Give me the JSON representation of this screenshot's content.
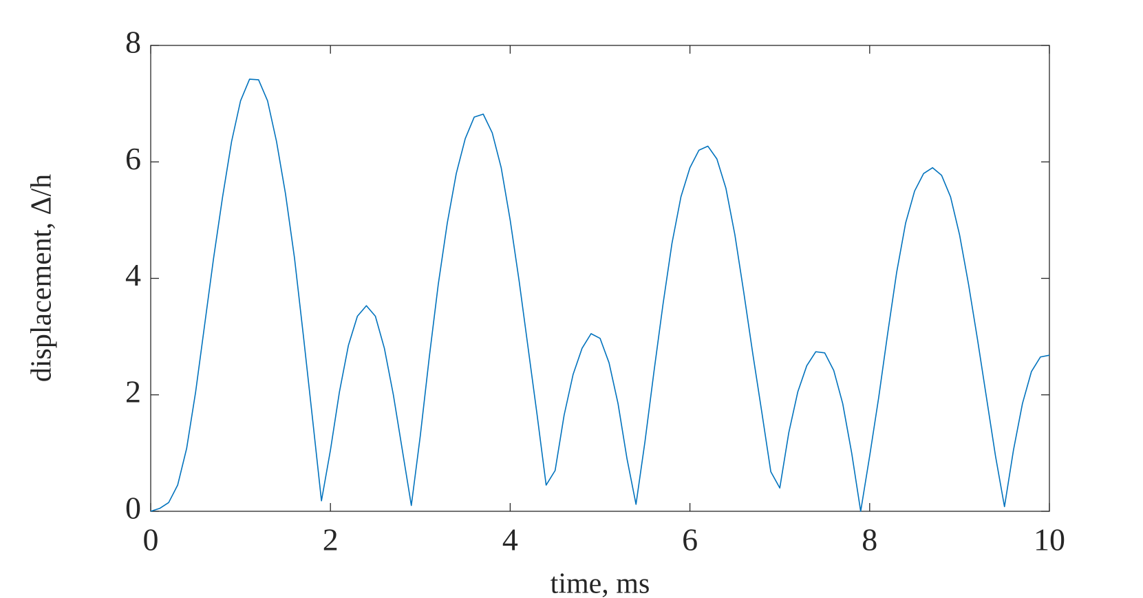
{
  "chart_data": {
    "type": "line",
    "x_label": "time, ms",
    "y_label": "displacement, Δ/h",
    "x": [
      0,
      0.1,
      0.2,
      0.3,
      0.4,
      0.5,
      0.6,
      0.7,
      0.8,
      0.9,
      1,
      1.1,
      1.2,
      1.3,
      1.4,
      1.5,
      1.6,
      1.7,
      1.8,
      1.9,
      2,
      2.1,
      2.2,
      2.3,
      2.4,
      2.5,
      2.6,
      2.7,
      2.8,
      2.9,
      3,
      3.1,
      3.2,
      3.3,
      3.4,
      3.5,
      3.6,
      3.7,
      3.8,
      3.9,
      4,
      4.1,
      4.2,
      4.3,
      4.4,
      4.5,
      4.6,
      4.7,
      4.8,
      4.9,
      5,
      5.1,
      5.2,
      5.3,
      5.4,
      5.5,
      5.6,
      5.7,
      5.8,
      5.9,
      6,
      6.1,
      6.2,
      6.3,
      6.4,
      6.5,
      6.6,
      6.7,
      6.8,
      6.9,
      7,
      7.1,
      7.2,
      7.3,
      7.4,
      7.5,
      7.6,
      7.7,
      7.8,
      7.9,
      8,
      8.1,
      8.2,
      8.3,
      8.4,
      8.5,
      8.6,
      8.7,
      8.8,
      8.9,
      9,
      9.1,
      9.2,
      9.3,
      9.4,
      9.5,
      9.6,
      9.7,
      9.8,
      9.9,
      10
    ],
    "values": [
      0,
      0.05,
      0.15,
      0.45,
      1.08,
      2.05,
      3.2,
      4.35,
      5.4,
      6.35,
      7.05,
      7.42,
      7.41,
      7.05,
      6.35,
      5.45,
      4.35,
      3.0,
      1.6,
      0.18,
      1.05,
      2.05,
      2.85,
      3.35,
      3.53,
      3.35,
      2.8,
      2.0,
      1.05,
      0.1,
      1.3,
      2.65,
      3.9,
      4.95,
      5.8,
      6.4,
      6.77,
      6.82,
      6.5,
      5.9,
      5.0,
      3.95,
      2.8,
      1.65,
      0.45,
      0.7,
      1.65,
      2.35,
      2.8,
      3.05,
      2.97,
      2.55,
      1.85,
      0.9,
      0.12,
      1.2,
      2.4,
      3.55,
      4.6,
      5.4,
      5.9,
      6.2,
      6.27,
      6.05,
      5.55,
      4.75,
      3.75,
      2.7,
      1.7,
      0.68,
      0.4,
      1.35,
      2.05,
      2.5,
      2.74,
      2.72,
      2.42,
      1.85,
      1.0,
      0.0,
      0.95,
      1.95,
      3.05,
      4.1,
      4.95,
      5.5,
      5.8,
      5.9,
      5.77,
      5.4,
      4.75,
      3.9,
      2.95,
      1.95,
      0.95,
      0.08,
      1.05,
      1.85,
      2.4,
      2.65,
      2.68
    ],
    "color": "#0072bd",
    "xlim": [
      0,
      10
    ],
    "xticks": [
      0,
      2,
      4,
      6,
      8,
      10
    ],
    "ylim": [
      0,
      8
    ],
    "yticks": [
      0,
      2,
      4,
      6,
      8
    ],
    "grid": false
  }
}
